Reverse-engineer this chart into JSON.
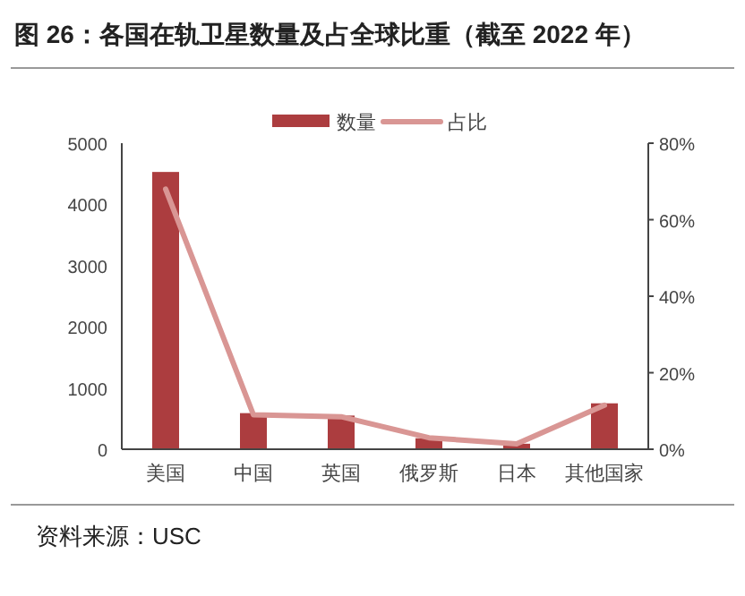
{
  "chart_data": {
    "type": "bar",
    "title": "图 26：各国在轨卫星数量及占全球比重（截至 2022 年）",
    "annotations": [
      "资料来源：USC"
    ],
    "categories": [
      "美国",
      "中国",
      "英国",
      "俄罗斯",
      "日本",
      "其他国家"
    ],
    "series": [
      {
        "name": "数量",
        "color": "#ac3d3f",
        "values": [
          4530,
          590,
          550,
          180,
          90,
          750
        ]
      },
      {
        "name": "占比",
        "type": "line",
        "axis": "y2",
        "color": "#d99694",
        "values": [
          68,
          9,
          8.5,
          3,
          1.4,
          11.5
        ]
      }
    ],
    "ylim": [
      0,
      5000
    ],
    "yticks": [
      0,
      1000,
      2000,
      3000,
      4000,
      5000
    ],
    "y2lim": [
      0,
      80
    ],
    "y2ticks": [
      {
        "value": 0,
        "label": "0%"
      },
      {
        "value": 20,
        "label": "20%"
      },
      {
        "value": 40,
        "label": "40%"
      },
      {
        "value": 60,
        "label": "60%"
      },
      {
        "value": 80,
        "label": "80%"
      }
    ],
    "legend": "top",
    "grid": false
  }
}
